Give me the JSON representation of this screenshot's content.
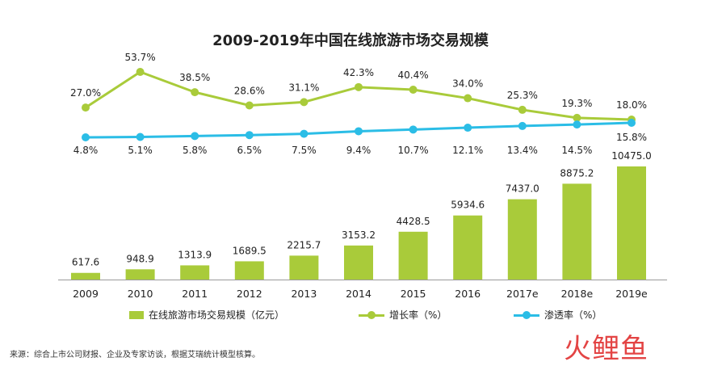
{
  "title": "2009-2019年中国在线旅游市场交易规模",
  "source": "来源：综合上市公司财报、企业及专家访谈，根据艾瑞统计模型核算。",
  "logo_text": "火鲤鱼",
  "colors": {
    "bar": "#a9cb3a",
    "growth": "#a9cb3a",
    "penetration": "#2bbde6"
  },
  "legend": [
    {
      "label": "在线旅游市场交易规模（亿元）",
      "kind": "bar"
    },
    {
      "label": "增长率（%）",
      "kind": "line-green"
    },
    {
      "label": "渗透率（%）",
      "kind": "line-blue"
    }
  ],
  "chart_data": {
    "type": "bar",
    "title": "2009-2019年中国在线旅游市场交易规模",
    "categories": [
      "2009",
      "2010",
      "2011",
      "2012",
      "2013",
      "2014",
      "2015",
      "2016",
      "2017e",
      "2018e",
      "2019e"
    ],
    "series": [
      {
        "name": "在线旅游市场交易规模（亿元）",
        "type": "bar",
        "values": [
          617.6,
          948.9,
          1313.9,
          1689.5,
          2215.7,
          3153.2,
          4428.5,
          5934.6,
          7437.0,
          8875.2,
          10475.0
        ],
        "labels": [
          "617.6",
          "948.9",
          "1313.9",
          "1689.5",
          "2215.7",
          "3153.2",
          "4428.5",
          "5934.6",
          "7437.0",
          "8875.2",
          "10475.0"
        ]
      },
      {
        "name": "增长率（%）",
        "type": "line",
        "values": [
          27.0,
          53.7,
          38.5,
          28.6,
          31.1,
          42.3,
          40.4,
          34.0,
          25.3,
          19.3,
          18.0
        ],
        "labels": [
          "27.0%",
          "53.7%",
          "38.5%",
          "28.6%",
          "31.1%",
          "42.3%",
          "40.4%",
          "34.0%",
          "25.3%",
          "19.3%",
          "18.0%"
        ]
      },
      {
        "name": "渗透率（%）",
        "type": "line",
        "values": [
          4.8,
          5.1,
          5.8,
          6.5,
          7.5,
          9.4,
          10.7,
          12.1,
          13.4,
          14.5,
          15.8
        ],
        "labels": [
          "4.8%",
          "5.1%",
          "5.8%",
          "6.5%",
          "7.5%",
          "9.4%",
          "10.7%",
          "12.1%",
          "13.4%",
          "14.5%",
          "15.8%"
        ]
      }
    ],
    "ylim_bar": [
      0,
      10475.0
    ],
    "ylim_growth": [
      18.0,
      53.7
    ],
    "ylim_penetration": [
      4.8,
      15.8
    ],
    "grid": false,
    "legend_position": "bottom"
  }
}
